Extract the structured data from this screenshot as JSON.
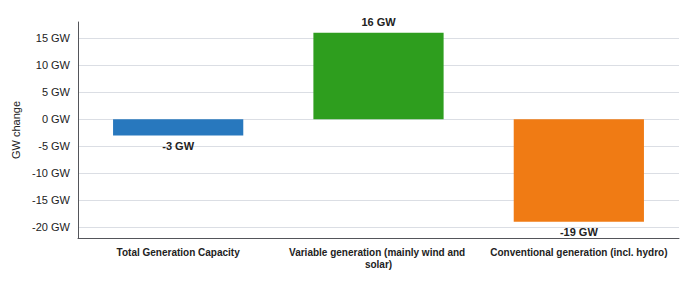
{
  "chart_data": {
    "type": "bar",
    "categories": [
      "Total Generation Capacity",
      "Variable generation (mainly wind and solar)",
      "Conventional generation (incl. hydro)"
    ],
    "values": [
      -3,
      16,
      -19
    ],
    "value_labels": [
      "-3 GW",
      "16 GW",
      "-19 GW"
    ],
    "data_labels": true,
    "colors": [
      "#2878be",
      "#2e9e1e",
      "#f07b14"
    ],
    "ylabel": "GW change",
    "ylim": [
      -22,
      18
    ],
    "yticks": [
      {
        "value": -20,
        "label": "-20 GW"
      },
      {
        "value": -15,
        "label": "-15 GW"
      },
      {
        "value": -10,
        "label": "-10 GW"
      },
      {
        "value": -5,
        "label": "-5 GW"
      },
      {
        "value": 0,
        "label": "0 GW"
      },
      {
        "value": 5,
        "label": "5 GW"
      },
      {
        "value": 10,
        "label": "10 GW"
      },
      {
        "value": 15,
        "label": "15 GW"
      }
    ],
    "grid": true
  }
}
